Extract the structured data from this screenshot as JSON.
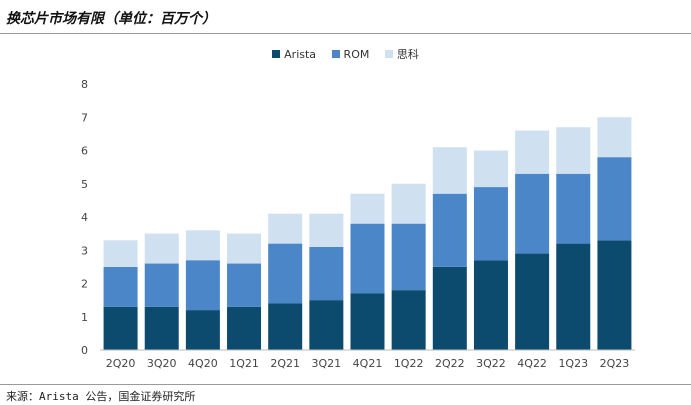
{
  "header": {
    "title": "换芯片市场有限（单位：百万个）"
  },
  "footer": {
    "source": "来源：Arista 公告，国金证券研究所"
  },
  "chart_data": {
    "type": "bar",
    "stacked": true,
    "title": "",
    "xlabel": "",
    "ylabel": "",
    "categories": [
      "2Q20",
      "3Q20",
      "4Q20",
      "1Q21",
      "2Q21",
      "3Q21",
      "4Q21",
      "1Q22",
      "2Q22",
      "3Q22",
      "4Q22",
      "1Q23",
      "2Q23"
    ],
    "series": [
      {
        "name": "Arista",
        "color": "#0c4a6e",
        "values": [
          1.3,
          1.3,
          1.2,
          1.3,
          1.4,
          1.5,
          1.7,
          1.8,
          2.5,
          2.7,
          2.9,
          3.2,
          3.3
        ]
      },
      {
        "name": "ROM",
        "color": "#4a86c8",
        "values": [
          1.2,
          1.3,
          1.5,
          1.3,
          1.8,
          1.6,
          2.1,
          2.0,
          2.2,
          2.2,
          2.4,
          2.1,
          2.5
        ]
      },
      {
        "name": "思科",
        "color": "#cfe0f1",
        "values": [
          0.8,
          0.9,
          0.9,
          0.9,
          0.9,
          1.0,
          0.9,
          1.2,
          1.4,
          1.1,
          1.3,
          1.4,
          1.2
        ]
      }
    ],
    "yticks": [
      0,
      1,
      2,
      3,
      4,
      5,
      6,
      7,
      8
    ],
    "ylim": [
      0,
      8
    ],
    "grid": false,
    "legend_position": "top-center"
  }
}
